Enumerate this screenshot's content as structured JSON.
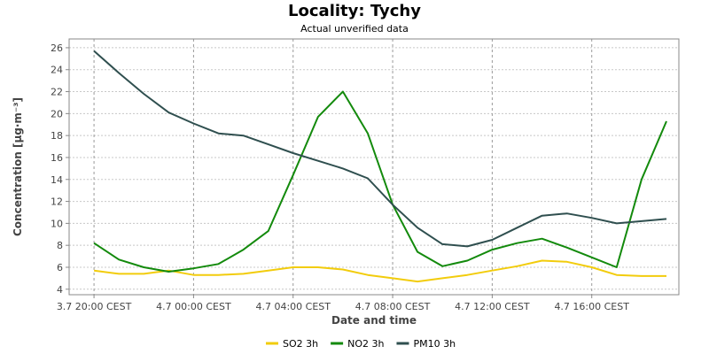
{
  "chart_data": {
    "type": "line",
    "title": "Locality: Tychy",
    "subtitle": "Actual unverified data",
    "xlabel": "Date and time",
    "ylabel": "Concentration [µg·m⁻³]",
    "ylim": [
      3.5,
      26.8
    ],
    "yticks": [
      4,
      6,
      8,
      10,
      12,
      14,
      16,
      18,
      20,
      22,
      24,
      26
    ],
    "xlim_hours": [
      -1,
      23.5
    ],
    "xticks": [
      {
        "hour": 0,
        "label": "3.7 20:00 CEST"
      },
      {
        "hour": 4,
        "label": "4.7 00:00 CEST"
      },
      {
        "hour": 8,
        "label": "4.7 04:00 CEST"
      },
      {
        "hour": 12,
        "label": "4.7 08:00 CEST"
      },
      {
        "hour": 16,
        "label": "4.7 12:00 CEST"
      },
      {
        "hour": 20,
        "label": "4.7 16:00 CEST"
      }
    ],
    "grid": true,
    "legend_position": "bottom",
    "x": [
      0,
      1,
      2,
      3,
      4,
      5,
      6,
      7,
      8,
      9,
      10,
      11,
      12,
      13,
      14,
      15,
      16,
      17,
      18,
      19,
      20,
      21,
      22,
      23
    ],
    "series": [
      {
        "name": "SO2 3h",
        "color": "#f2cc0c",
        "values": [
          5.7,
          5.4,
          5.4,
          5.7,
          5.3,
          5.3,
          5.4,
          5.7,
          6.0,
          6.0,
          5.8,
          5.3,
          5.0,
          4.7,
          5.0,
          5.3,
          5.7,
          6.1,
          6.6,
          6.5,
          6.0,
          5.3,
          5.2,
          5.2
        ]
      },
      {
        "name": "NO2 3h",
        "color": "#138a0c",
        "values": [
          8.2,
          6.7,
          6.0,
          5.6,
          5.9,
          6.3,
          7.6,
          9.3,
          14.4,
          19.7,
          22.0,
          18.2,
          11.7,
          7.4,
          6.1,
          6.6,
          7.6,
          8.2,
          8.6,
          7.8,
          6.9,
          6.0,
          14.0,
          19.3
        ]
      },
      {
        "name": "PM10 3h",
        "color": "#2f4f4f",
        "values": [
          25.7,
          23.7,
          21.8,
          20.1,
          19.1,
          18.2,
          18.0,
          17.2,
          16.4,
          15.7,
          15.0,
          14.1,
          11.7,
          9.6,
          8.1,
          7.9,
          8.5,
          9.6,
          10.7,
          10.9,
          10.5,
          10.0,
          10.2,
          10.4
        ]
      }
    ]
  }
}
